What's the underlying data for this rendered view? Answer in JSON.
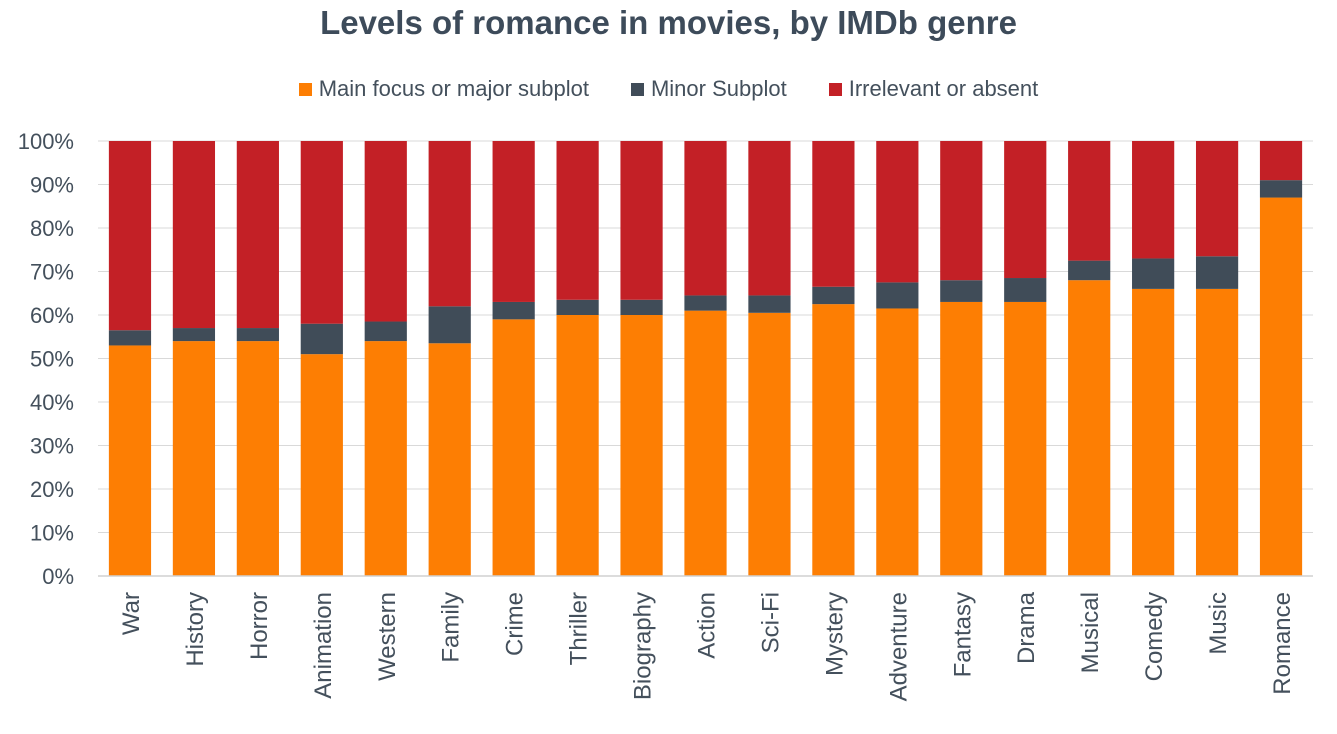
{
  "chart_data": {
    "type": "bar",
    "stacked": true,
    "title": "Levels of romance in movies, by IMDb genre",
    "xlabel": "",
    "ylabel": "",
    "ylim": [
      0,
      100
    ],
    "y_ticks": [
      "0%",
      "10%",
      "20%",
      "30%",
      "40%",
      "50%",
      "60%",
      "70%",
      "80%",
      "90%",
      "100%"
    ],
    "grid": true,
    "legend_position": "top",
    "categories": [
      "War",
      "History",
      "Horror",
      "Animation",
      "Western",
      "Family",
      "Crime",
      "Thriller",
      "Biography",
      "Action",
      "Sci-Fi",
      "Mystery",
      "Adventure",
      "Fantasy",
      "Drama",
      "Musical",
      "Comedy",
      "Music",
      "Romance"
    ],
    "series": [
      {
        "name": "Main focus or major subplot",
        "color": "#fd7e03",
        "values": [
          53,
          54,
          54,
          51,
          54,
          53.5,
          59,
          60,
          60,
          61,
          60.5,
          62.5,
          61.5,
          63,
          63,
          68,
          66,
          66,
          87
        ]
      },
      {
        "name": "Minor Subplot",
        "color": "#404c58",
        "values": [
          3.5,
          3,
          3,
          7,
          4.5,
          8.5,
          4,
          3.5,
          3.5,
          3.5,
          4,
          4,
          6,
          5,
          5.5,
          4.5,
          7,
          7.5,
          4
        ]
      },
      {
        "name": "Irrelevant or absent",
        "color": "#c32026",
        "values": [
          43.5,
          43,
          43,
          42,
          41.5,
          38,
          37,
          36.5,
          36.5,
          35.5,
          35.5,
          33.5,
          32.5,
          32,
          31.5,
          27.5,
          27,
          26.5,
          9
        ]
      }
    ]
  }
}
